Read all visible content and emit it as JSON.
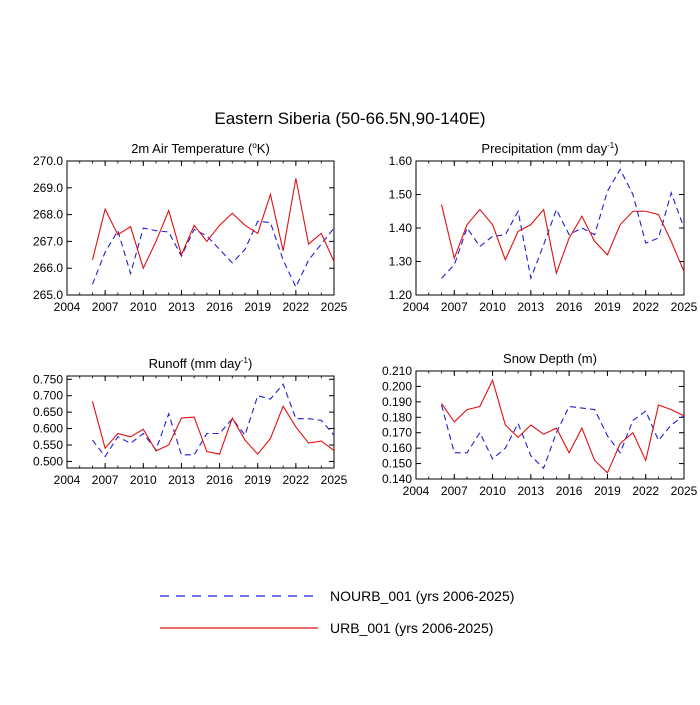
{
  "title": "Eastern Siberia (50-66.5N,90-140E)",
  "colors": {
    "nourb": "#1f1fd6",
    "urb": "#e01010",
    "frame": "#000000"
  },
  "legend": {
    "nourb_label": "NOURB_001 (yrs 2006-2025)",
    "urb_label": "URB_001 (yrs 2006-2025)",
    "placement": "bottom-center"
  },
  "chart_data": [
    {
      "type": "line",
      "title": "2m Air Temperature (",
      "title_super": "o",
      "title_suffix": "K)",
      "xlim": [
        2004,
        2025
      ],
      "xticks": [
        "2004",
        "2007",
        "2010",
        "2013",
        "2016",
        "2019",
        "2022",
        "2025"
      ],
      "ylim": [
        265.0,
        270.0
      ],
      "yticks": [
        "265.0",
        "266.0",
        "267.0",
        "268.0",
        "269.0",
        "270.0"
      ],
      "x": [
        2006,
        2007,
        2008,
        2009,
        2010,
        2011,
        2012,
        2013,
        2014,
        2015,
        2016,
        2017,
        2018,
        2019,
        2020,
        2021,
        2022,
        2023,
        2024,
        2025
      ],
      "series": [
        {
          "name": "NOURB_001 (yrs 2006-2025)",
          "style": "dashed",
          "values": [
            265.4,
            266.6,
            267.4,
            265.8,
            267.5,
            267.4,
            267.35,
            266.45,
            267.45,
            267.2,
            266.7,
            266.2,
            266.7,
            267.75,
            267.7,
            266.3,
            265.3,
            266.3,
            266.9,
            267.5
          ]
        },
        {
          "name": "URB_001 (yrs 2006-2025)",
          "style": "solid",
          "values": [
            266.3,
            268.2,
            267.25,
            267.55,
            266.0,
            267.0,
            268.15,
            266.5,
            267.6,
            267.0,
            267.6,
            268.05,
            267.6,
            267.3,
            268.75,
            266.65,
            269.35,
            266.9,
            267.3,
            266.25
          ]
        }
      ]
    },
    {
      "type": "line",
      "title": "Precipitation (mm day",
      "title_super": "-1",
      "title_suffix": ")",
      "xlim": [
        2004,
        2025
      ],
      "xticks": [
        "2004",
        "2007",
        "2010",
        "2013",
        "2016",
        "2019",
        "2022",
        "2025"
      ],
      "ylim": [
        1.2,
        1.6
      ],
      "yticks": [
        "1.20",
        "1.30",
        "1.40",
        "1.50",
        "1.60"
      ],
      "x": [
        2006,
        2007,
        2008,
        2009,
        2010,
        2011,
        2012,
        2013,
        2014,
        2015,
        2016,
        2017,
        2018,
        2019,
        2020,
        2021,
        2022,
        2023,
        2024,
        2025
      ],
      "series": [
        {
          "name": "NOURB_001 (yrs 2006-2025)",
          "style": "dashed",
          "values": [
            1.25,
            1.29,
            1.4,
            1.345,
            1.375,
            1.38,
            1.45,
            1.25,
            1.35,
            1.455,
            1.38,
            1.4,
            1.38,
            1.51,
            1.575,
            1.5,
            1.355,
            1.37,
            1.505,
            1.4
          ]
        },
        {
          "name": "URB_001 (yrs 2006-2025)",
          "style": "solid",
          "values": [
            1.47,
            1.31,
            1.41,
            1.455,
            1.41,
            1.305,
            1.39,
            1.41,
            1.455,
            1.265,
            1.37,
            1.435,
            1.36,
            1.32,
            1.41,
            1.45,
            1.45,
            1.44,
            1.36,
            1.27
          ]
        }
      ]
    },
    {
      "type": "line",
      "title": "Runoff (mm day",
      "title_super": "-1",
      "title_suffix": ")",
      "xlim": [
        2004,
        2025
      ],
      "xticks": [
        "2004",
        "2007",
        "2010",
        "2013",
        "2016",
        "2019",
        "2022",
        "2025"
      ],
      "ylim": [
        0.48,
        0.76
      ],
      "yticks": [
        "0.500",
        "0.550",
        "0.600",
        "0.650",
        "0.700",
        "0.750"
      ],
      "x": [
        2006,
        2007,
        2008,
        2009,
        2010,
        2011,
        2012,
        2013,
        2014,
        2015,
        2016,
        2017,
        2018,
        2019,
        2020,
        2021,
        2022,
        2023,
        2024,
        2025
      ],
      "series": [
        {
          "name": "NOURB_001 (yrs 2006-2025)",
          "style": "dashed",
          "values": [
            0.565,
            0.515,
            0.575,
            0.555,
            0.585,
            0.535,
            0.645,
            0.52,
            0.52,
            0.585,
            0.585,
            0.63,
            0.58,
            0.7,
            0.69,
            0.735,
            0.63,
            0.63,
            0.625,
            0.58
          ]
        },
        {
          "name": "URB_001 (yrs 2006-2025)",
          "style": "solid",
          "values": [
            0.683,
            0.54,
            0.585,
            0.575,
            0.598,
            0.532,
            0.55,
            0.632,
            0.635,
            0.53,
            0.522,
            0.632,
            0.565,
            0.522,
            0.57,
            0.668,
            0.605,
            0.556,
            0.562,
            0.533
          ]
        }
      ]
    },
    {
      "type": "line",
      "title": "Snow Depth (m)",
      "title_super": "",
      "title_suffix": "",
      "xlim": [
        2004,
        2025
      ],
      "xticks": [
        "2004",
        "2007",
        "2010",
        "2013",
        "2016",
        "2019",
        "2022",
        "2025"
      ],
      "ylim": [
        0.14,
        0.21
      ],
      "yticks": [
        "0.140",
        "0.150",
        "0.160",
        "0.170",
        "0.180",
        "0.190",
        "0.200",
        "0.210"
      ],
      "x": [
        2006,
        2007,
        2008,
        2009,
        2010,
        2011,
        2012,
        2013,
        2014,
        2015,
        2016,
        2017,
        2018,
        2019,
        2020,
        2021,
        2022,
        2023,
        2024,
        2025
      ],
      "series": [
        {
          "name": "NOURB_001 (yrs 2006-2025)",
          "style": "dashed",
          "values": [
            0.188,
            0.157,
            0.157,
            0.17,
            0.153,
            0.16,
            0.176,
            0.155,
            0.147,
            0.17,
            0.187,
            0.186,
            0.185,
            0.168,
            0.157,
            0.178,
            0.184,
            0.165,
            0.175,
            0.181
          ]
        },
        {
          "name": "URB_001 (yrs 2006-2025)",
          "style": "solid",
          "values": [
            0.189,
            0.177,
            0.185,
            0.187,
            0.204,
            0.175,
            0.167,
            0.175,
            0.169,
            0.173,
            0.157,
            0.173,
            0.152,
            0.144,
            0.163,
            0.17,
            0.152,
            0.188,
            0.185,
            0.181
          ]
        }
      ]
    }
  ]
}
